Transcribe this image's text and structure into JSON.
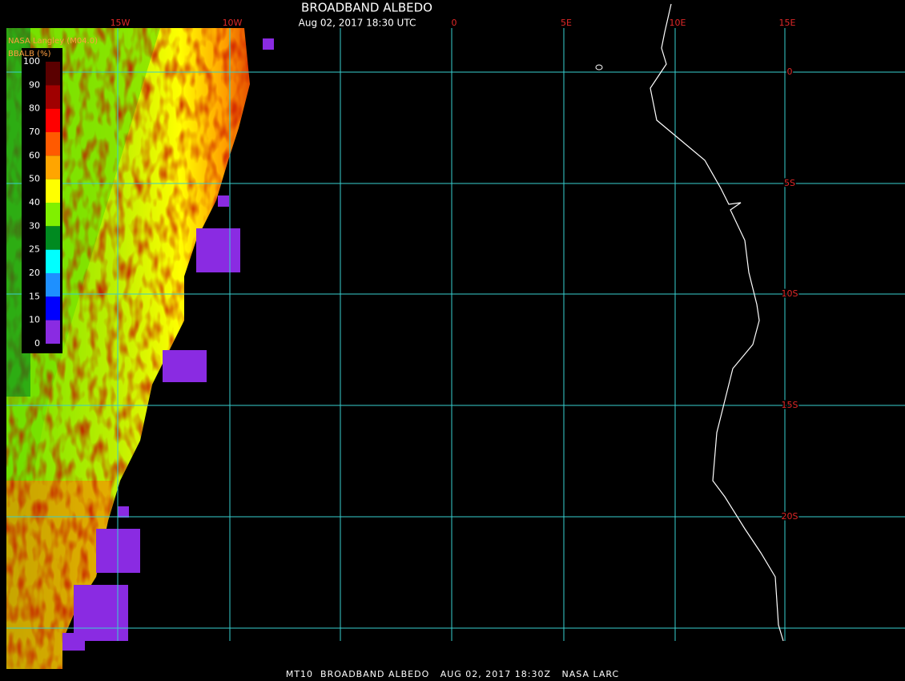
{
  "header": {
    "title": "BROADBAND ALBEDO",
    "subtitle": "Aug 02, 2017 18:30 UTC",
    "source": "NASA Langley (M04.0)"
  },
  "legend": {
    "label": "BBALB (%)",
    "ticks": [
      100,
      90,
      80,
      70,
      60,
      50,
      40,
      30,
      25,
      20,
      15,
      10,
      0
    ],
    "colors": [
      "#5a0000",
      "#a00000",
      "#ff0000",
      "#ff5a00",
      "#ffa500",
      "#ffff00",
      "#80f000",
      "#008a20",
      "#00ffff",
      "#1e90ff",
      "#0000ff",
      "#8a2be2"
    ]
  },
  "longitudes": [
    "15W",
    "10W",
    "0",
    "5E",
    "10E",
    "15E"
  ],
  "latitudes": [
    "0",
    "5S",
    "10S",
    "15S",
    "20S"
  ],
  "footer": "MT10  BROADBAND ALBEDO   AUG 02, 2017 18:30Z   NASA LARC"
}
